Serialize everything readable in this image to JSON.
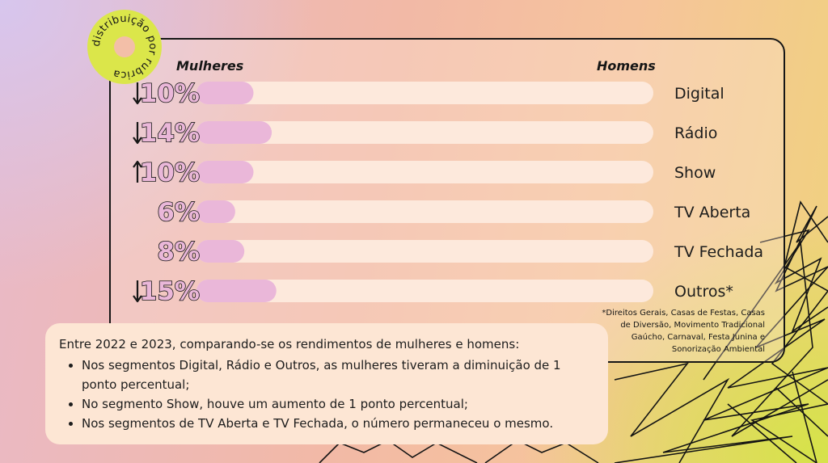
{
  "stamp_text": "distribuição por rubrica",
  "header": {
    "left_label": "Mulheres",
    "right_label": "Homens"
  },
  "chart_data": {
    "type": "bar",
    "categories": [
      "Digital",
      "Rádio",
      "Show",
      "TV Aberta",
      "TV Fechada",
      "Outros*"
    ],
    "series": [
      {
        "name": "Mulheres",
        "values": [
          10,
          14,
          10,
          6,
          8,
          15
        ],
        "color": "#eab7d9"
      },
      {
        "name": "Homens",
        "values": [
          90,
          86,
          90,
          94,
          92,
          85
        ],
        "color": "#fde9dc"
      }
    ],
    "value_labels": [
      "10%",
      "14%",
      "10%",
      "6%",
      "8%",
      "15%"
    ],
    "trend": [
      "down",
      "down",
      "up",
      "none",
      "none",
      "down"
    ],
    "xlim": [
      0,
      100
    ],
    "stacked": true,
    "orientation": "horizontal"
  },
  "footnote": "*Direitos Gerais, Casas de Festas, Casas de Diversão, Movimento Tradicional Gaúcho, Carnaval, Festa Junina e Sonorização Ambiental",
  "summary": {
    "intro": "Entre 2022 e 2023, comparando-se os rendimentos de mulheres e homens:",
    "bullets": [
      "Nos segmentos Digital, Rádio e Outros, as mulheres tiveram a diminuição de 1 ponto percentual;",
      "No segmento Show, houve um aumento de 1 ponto percentual;",
      "Nos segmentos de TV Aberta e TV Fechada, o número permaneceu o mesmo."
    ]
  },
  "colors": {
    "ink": "#161616",
    "women_bar": "#eab7d9",
    "men_bar": "#fde9dc",
    "stamp": "#dbe64a"
  }
}
